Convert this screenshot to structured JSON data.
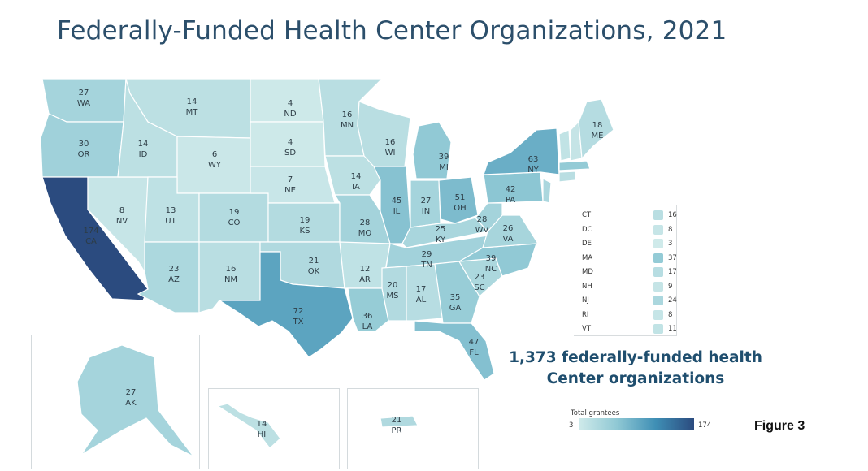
{
  "title": "Federally-Funded Health Center Organizations, 2021",
  "summary_line1": "1,373 federally-funded health",
  "summary_line2": "Center organizations",
  "figure_label": "Figure 3",
  "scale": {
    "title": "Total grantees",
    "min": "3",
    "max": "174"
  },
  "colors": {
    "low": "#cfeaea",
    "mid": "#8fc8d4",
    "high": "#3f8fb5",
    "max": "#2b4b7f"
  },
  "states": [
    {
      "abbr": "WA",
      "value": "27"
    },
    {
      "abbr": "OR",
      "value": "30"
    },
    {
      "abbr": "CA",
      "value": "174"
    },
    {
      "abbr": "NV",
      "value": "8"
    },
    {
      "abbr": "ID",
      "value": "14"
    },
    {
      "abbr": "MT",
      "value": "14"
    },
    {
      "abbr": "WY",
      "value": "6"
    },
    {
      "abbr": "UT",
      "value": "13"
    },
    {
      "abbr": "AZ",
      "value": "23"
    },
    {
      "abbr": "CO",
      "value": "19"
    },
    {
      "abbr": "NM",
      "value": "16"
    },
    {
      "abbr": "ND",
      "value": "4"
    },
    {
      "abbr": "SD",
      "value": "4"
    },
    {
      "abbr": "NE",
      "value": "7"
    },
    {
      "abbr": "KS",
      "value": "19"
    },
    {
      "abbr": "OK",
      "value": "21"
    },
    {
      "abbr": "TX",
      "value": "72"
    },
    {
      "abbr": "MN",
      "value": "16"
    },
    {
      "abbr": "IA",
      "value": "14"
    },
    {
      "abbr": "MO",
      "value": "28"
    },
    {
      "abbr": "AR",
      "value": "12"
    },
    {
      "abbr": "LA",
      "value": "36"
    },
    {
      "abbr": "WI",
      "value": "16"
    },
    {
      "abbr": "IL",
      "value": "45"
    },
    {
      "abbr": "MI",
      "value": "39"
    },
    {
      "abbr": "IN",
      "value": "27"
    },
    {
      "abbr": "OH",
      "value": "51"
    },
    {
      "abbr": "KY",
      "value": "25"
    },
    {
      "abbr": "TN",
      "value": "29"
    },
    {
      "abbr": "MS",
      "value": "20"
    },
    {
      "abbr": "AL",
      "value": "17"
    },
    {
      "abbr": "GA",
      "value": "35"
    },
    {
      "abbr": "FL",
      "value": "47"
    },
    {
      "abbr": "SC",
      "value": "23"
    },
    {
      "abbr": "NC",
      "value": "39"
    },
    {
      "abbr": "VA",
      "value": "26"
    },
    {
      "abbr": "WV",
      "value": "28"
    },
    {
      "abbr": "PA",
      "value": "42"
    },
    {
      "abbr": "NY",
      "value": "63"
    },
    {
      "abbr": "ME",
      "value": "18"
    },
    {
      "abbr": "AK",
      "value": "27"
    },
    {
      "abbr": "HI",
      "value": "14"
    },
    {
      "abbr": "PR",
      "value": "21"
    }
  ],
  "small_states": [
    {
      "abbr": "CT",
      "value": "16"
    },
    {
      "abbr": "DC",
      "value": "8"
    },
    {
      "abbr": "DE",
      "value": "3"
    },
    {
      "abbr": "MA",
      "value": "37"
    },
    {
      "abbr": "MD",
      "value": "17"
    },
    {
      "abbr": "NH",
      "value": "9"
    },
    {
      "abbr": "NJ",
      "value": "24"
    },
    {
      "abbr": "RI",
      "value": "8"
    },
    {
      "abbr": "VT",
      "value": "11"
    }
  ]
}
